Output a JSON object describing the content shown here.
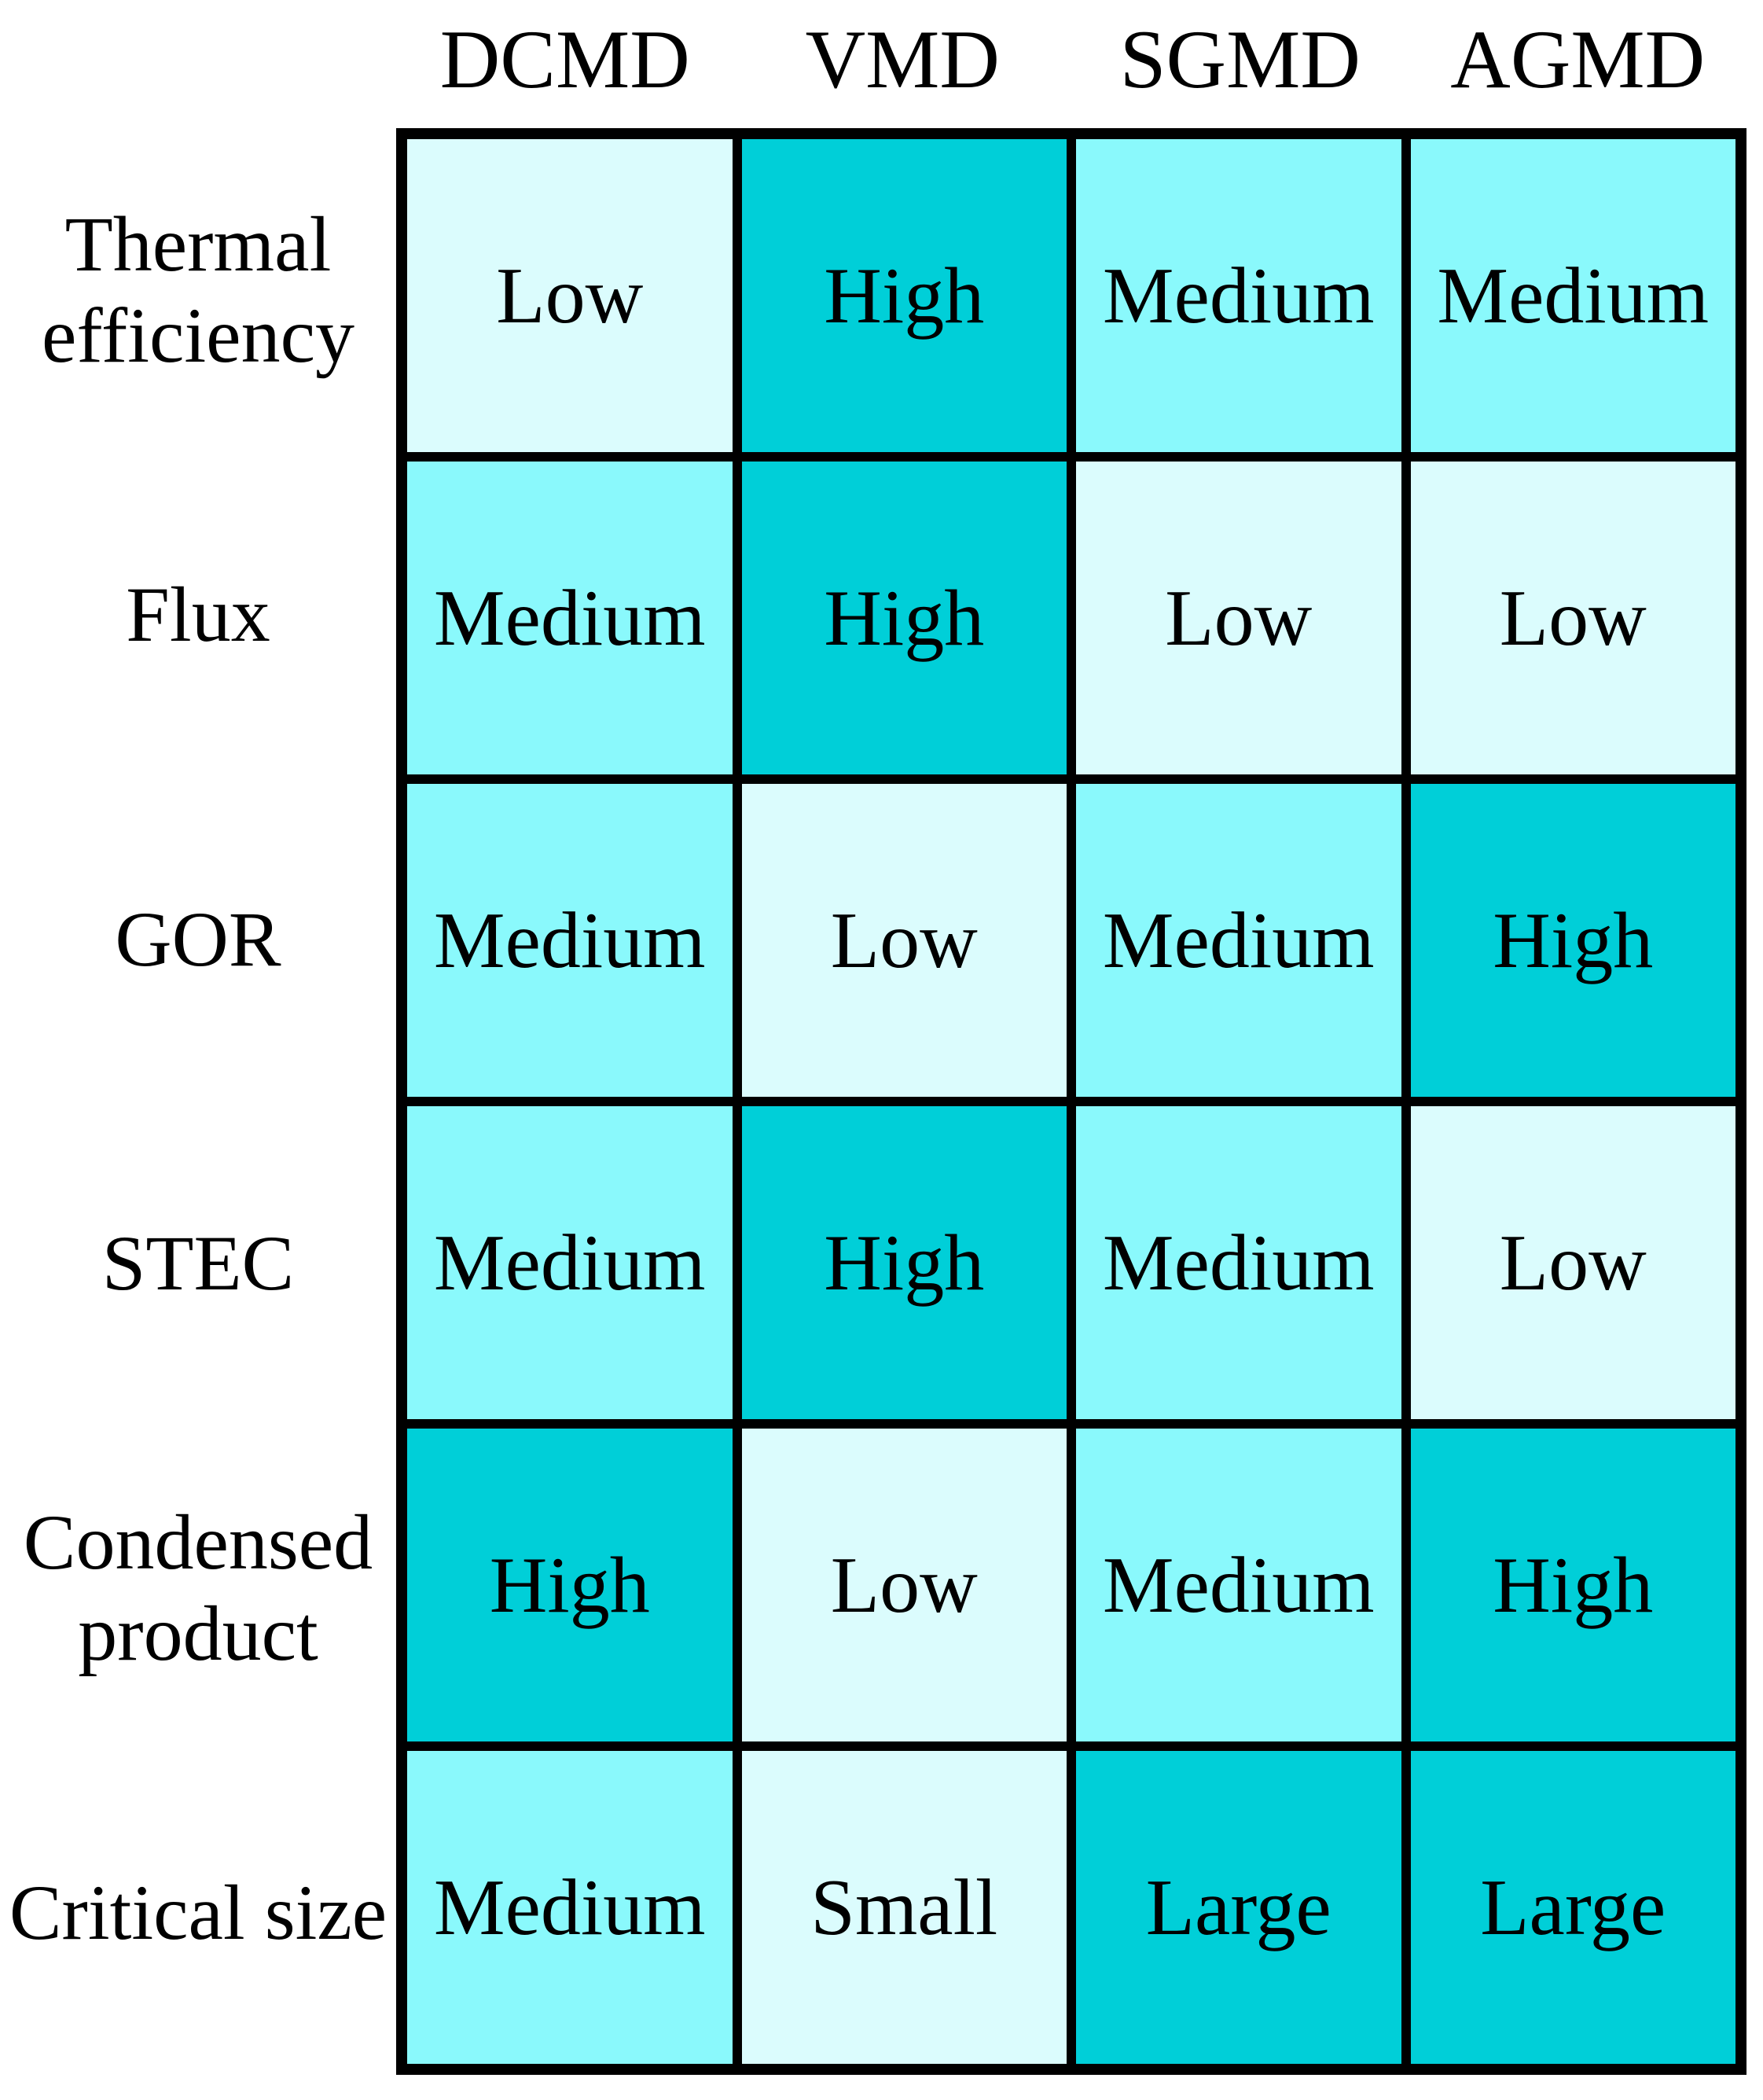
{
  "chart_data": {
    "type": "heatmap",
    "title": "",
    "xlabel": "",
    "ylabel": "",
    "columns": [
      "DCMD",
      "VMD",
      "SGMD",
      "AGMD"
    ],
    "rows": [
      "Thermal efficiency",
      "Flux",
      "GOR",
      "STEC",
      "Condensed product",
      "Critical size"
    ],
    "values": [
      [
        "Low",
        "High",
        "Medium",
        "Medium"
      ],
      [
        "Medium",
        "High",
        "Low",
        "Low"
      ],
      [
        "Medium",
        "Low",
        "Medium",
        "High"
      ],
      [
        "Medium",
        "High",
        "Medium",
        "Low"
      ],
      [
        "High",
        "Low",
        "Medium",
        "High"
      ],
      [
        "Medium",
        "Small",
        "Large",
        "Large"
      ]
    ],
    "levels": {
      "Low": 1,
      "Small": 1,
      "Medium": 2,
      "High": 3,
      "Large": 3
    },
    "level_colors": {
      "1": "#DBFCFD",
      "2": "#8AF9FC",
      "3": "#00CFD8"
    },
    "grid_color": "#000000",
    "text_color": "#000000",
    "legend_position": "none",
    "grid": "thick black cell borders"
  },
  "header": {
    "columns": [
      {
        "label": "DCMD"
      },
      {
        "label": "VMD"
      },
      {
        "label": "SGMD"
      },
      {
        "label": "AGMD"
      }
    ]
  },
  "matrix": {
    "rows": [
      {
        "label": "Thermal efficiency",
        "cells": [
          {
            "label": "Low",
            "level": "1"
          },
          {
            "label": "High",
            "level": "3"
          },
          {
            "label": "Medium",
            "level": "2"
          },
          {
            "label": "Medium",
            "level": "2"
          }
        ]
      },
      {
        "label": "Flux",
        "cells": [
          {
            "label": "Medium",
            "level": "2"
          },
          {
            "label": "High",
            "level": "3"
          },
          {
            "label": "Low",
            "level": "1"
          },
          {
            "label": "Low",
            "level": "1"
          }
        ]
      },
      {
        "label": "GOR",
        "cells": [
          {
            "label": "Medium",
            "level": "2"
          },
          {
            "label": "Low",
            "level": "1"
          },
          {
            "label": "Medium",
            "level": "2"
          },
          {
            "label": "High",
            "level": "3"
          }
        ]
      },
      {
        "label": "STEC",
        "cells": [
          {
            "label": "Medium",
            "level": "2"
          },
          {
            "label": "High",
            "level": "3"
          },
          {
            "label": "Medium",
            "level": "2"
          },
          {
            "label": "Low",
            "level": "1"
          }
        ]
      },
      {
        "label": "Condensed product",
        "cells": [
          {
            "label": "High",
            "level": "3"
          },
          {
            "label": "Low",
            "level": "1"
          },
          {
            "label": "Medium",
            "level": "2"
          },
          {
            "label": "High",
            "level": "3"
          }
        ]
      },
      {
        "label": "Critical size",
        "cells": [
          {
            "label": "Medium",
            "level": "2"
          },
          {
            "label": "Small",
            "level": "1"
          },
          {
            "label": "Large",
            "level": "3"
          },
          {
            "label": "Large",
            "level": "3"
          }
        ]
      }
    ]
  }
}
